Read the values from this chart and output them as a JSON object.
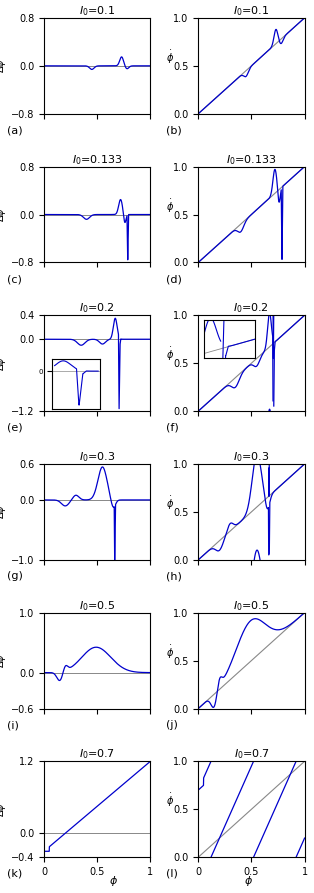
{
  "rows": [
    {
      "label": "I0=0.1",
      "prc_ylim": [
        -0.8,
        0.8
      ],
      "ptc_ylim": [
        0,
        1
      ],
      "panel_left": "a",
      "panel_right": "b",
      "prc_yticks": [
        -0.8,
        0,
        0.8
      ],
      "has_inset": false,
      "prc_hline": 0
    },
    {
      "label": "I0=0.133",
      "prc_ylim": [
        -0.8,
        0.8
      ],
      "ptc_ylim": [
        0,
        1
      ],
      "panel_left": "c",
      "panel_right": "d",
      "prc_yticks": [
        -0.8,
        0,
        0.8
      ],
      "has_inset": false,
      "prc_hline": 0
    },
    {
      "label": "I0=0.2",
      "prc_ylim": [
        -1.2,
        0.4
      ],
      "ptc_ylim": [
        0,
        1
      ],
      "panel_left": "e",
      "panel_right": "f",
      "prc_yticks": [
        -1.2,
        0,
        0.4
      ],
      "has_inset": true,
      "prc_hline": 0
    },
    {
      "label": "I0=0.3",
      "prc_ylim": [
        -1.0,
        0.6
      ],
      "ptc_ylim": [
        0,
        1
      ],
      "panel_left": "g",
      "panel_right": "h",
      "prc_yticks": [
        -1.0,
        0,
        0.6
      ],
      "has_inset": false,
      "prc_hline": 0
    },
    {
      "label": "I0=0.5",
      "prc_ylim": [
        -0.6,
        1.0
      ],
      "ptc_ylim": [
        0,
        1
      ],
      "panel_left": "i",
      "panel_right": "j",
      "prc_yticks": [
        -0.6,
        0,
        1.0
      ],
      "has_inset": false,
      "prc_hline": 0
    },
    {
      "label": "I0=0.7",
      "prc_ylim": [
        -0.4,
        1.2
      ],
      "ptc_ylim": [
        0,
        1
      ],
      "panel_left": "k",
      "panel_right": "l",
      "prc_yticks": [
        -0.4,
        0,
        1.2
      ],
      "has_inset": false,
      "prc_hline": 0
    }
  ],
  "line_color": "#0000CC",
  "diag_color": "#888888",
  "hline_color": "#888888",
  "bg_color": "#ffffff",
  "fontsize_title": 8,
  "fontsize_label": 7,
  "fontsize_tick": 7,
  "fontsize_panel": 8
}
